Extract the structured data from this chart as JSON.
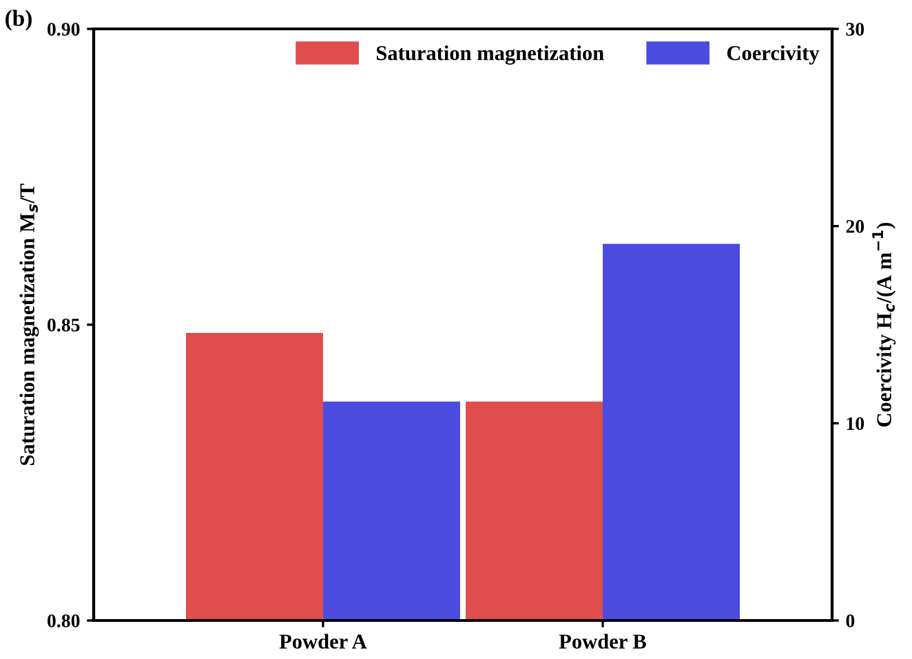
{
  "chart_data": {
    "type": "bar",
    "categories": [
      "Powder A",
      "Powder B"
    ],
    "series": [
      {
        "name": "Saturation magnetization",
        "color": "#e04d4d",
        "values": [
          0.8486,
          0.837
        ]
      },
      {
        "name": "Coercivity",
        "color": "#4b4be0",
        "values": [
          11.1,
          19.1
        ],
        "axis": "y2"
      }
    ],
    "ylabel": "Saturation magnetization M$_{s}$/T",
    "y2label": "Coercivity H$_{c}$/(A m$^{−1}$)",
    "ylim": [
      0.8,
      0.9
    ],
    "yticks": [
      {
        "value": 0.8,
        "label": "0.80"
      },
      {
        "value": 0.85,
        "label": "0.85"
      },
      {
        "value": 0.9,
        "label": "0.90"
      }
    ],
    "y2lim": [
      0,
      30
    ],
    "y2ticks": [
      0,
      10,
      20,
      30
    ],
    "annotations": [
      "(b)"
    ],
    "legend": "top right",
    "grid": false
  }
}
